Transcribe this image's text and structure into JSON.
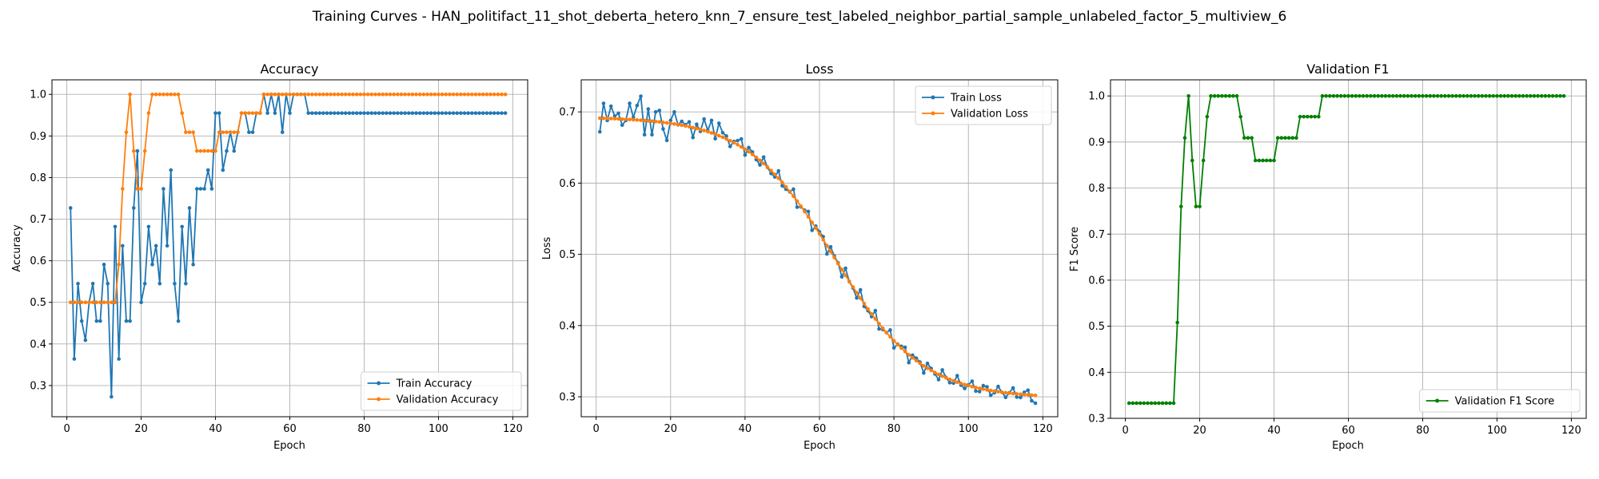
{
  "figure_title": "Training Curves - HAN_politifact_11_shot_deberta_hetero_knn_7_ensure_test_labeled_neighbor_partial_sample_unlabeled_factor_5_multiview_6",
  "colors": {
    "train": "#1f77b4",
    "validation": "#ff7f0e",
    "f1": "#008000",
    "grid": "#b0b0b0",
    "axis": "#000000"
  },
  "chart_data": [
    {
      "id": "accuracy",
      "type": "line",
      "title": "Accuracy",
      "xlabel": "Epoch",
      "ylabel": "Accuracy",
      "xlim": [
        -4,
        124
      ],
      "ylim": [
        0.225,
        1.035
      ],
      "xticks": [
        0,
        20,
        40,
        60,
        80,
        100,
        120
      ],
      "yticks": [
        0.3,
        0.4,
        0.5,
        0.6,
        0.7,
        0.8,
        0.9,
        1.0
      ],
      "ytick_labels": [
        "0.3",
        "0.4",
        "0.5",
        "0.6",
        "0.7",
        "0.8",
        "0.9",
        "1.0"
      ],
      "grid": true,
      "legend_position": "lower-right",
      "x_start": 1,
      "x_end": 118,
      "series": [
        {
          "name": "Train Accuracy",
          "color_key": "train",
          "values": [
            0.727,
            0.364,
            0.545,
            0.455,
            0.409,
            0.5,
            0.545,
            0.455,
            0.455,
            0.591,
            0.545,
            0.273,
            0.682,
            0.364,
            0.636,
            0.455,
            0.455,
            0.727,
            0.864,
            0.5,
            0.545,
            0.682,
            0.591,
            0.636,
            0.545,
            0.773,
            0.636,
            0.818,
            0.545,
            0.455,
            0.682,
            0.545,
            0.727,
            0.591,
            0.773,
            0.773,
            0.773,
            0.818,
            0.773,
            0.955,
            0.955,
            0.818,
            0.864,
            0.909,
            0.864,
            0.909,
            0.955,
            0.955,
            0.909,
            0.909,
            0.955,
            0.955,
            1.0,
            0.955,
            1.0,
            0.955,
            1.0,
            0.909,
            1.0,
            0.955,
            1.0,
            1.0,
            1.0,
            1.0,
            0.955
          ]
        },
        {
          "name": "Validation Accuracy",
          "color_key": "validation",
          "values": [
            0.5,
            0.5,
            0.5,
            0.5,
            0.5,
            0.5,
            0.5,
            0.5,
            0.5,
            0.5,
            0.5,
            0.5,
            0.5,
            0.591,
            0.773,
            0.909,
            1.0,
            0.864,
            0.773,
            0.773,
            0.864,
            0.955,
            1.0,
            1.0,
            1.0,
            1.0,
            1.0,
            1.0,
            1.0,
            1.0,
            0.955,
            0.909,
            0.909,
            0.909,
            0.864,
            0.864,
            0.864,
            0.864,
            0.864,
            0.864,
            0.909,
            0.909,
            0.909,
            0.909,
            0.909,
            0.909,
            0.955,
            0.955,
            0.955,
            0.955,
            0.955,
            0.955,
            1.0
          ],
          "fill_to_end": 1.0
        }
      ]
    },
    {
      "id": "loss",
      "type": "line",
      "title": "Loss",
      "xlabel": "Epoch",
      "ylabel": "Loss",
      "xlim": [
        -4,
        124
      ],
      "ylim": [
        0.272,
        0.745
      ],
      "xticks": [
        0,
        20,
        40,
        60,
        80,
        100,
        120
      ],
      "yticks": [
        0.3,
        0.4,
        0.5,
        0.6,
        0.7
      ],
      "ytick_labels": [
        "0.3",
        "0.4",
        "0.5",
        "0.6",
        "0.7"
      ],
      "grid": true,
      "legend_position": "upper-right",
      "x_start": 1,
      "x_end": 118,
      "series": [
        {
          "name": "Train Loss",
          "color_key": "train",
          "curve": {
            "start": 0.693,
            "end": 0.298,
            "k": 0.085,
            "x0": 64
          },
          "noise_amplitude": 0.012,
          "overrides": {
            "1": 0.672,
            "2": 0.712,
            "3": 0.688,
            "4": 0.708,
            "5": 0.694,
            "6": 0.698,
            "8": 0.688,
            "9": 0.712,
            "10": 0.692,
            "11": 0.709,
            "12": 0.722,
            "13": 0.668,
            "14": 0.704,
            "15": 0.668,
            "16": 0.7,
            "17": 0.702,
            "18": 0.676,
            "19": 0.66,
            "20": 0.688,
            "21": 0.7,
            "25": 0.686,
            "26": 0.664,
            "29": 0.69,
            "30": 0.674,
            "31": 0.688,
            "33": 0.684,
            "35": 0.666,
            "39": 0.662,
            "118": 0.291
          }
        },
        {
          "name": "Validation Loss",
          "color_key": "validation",
          "curve": {
            "start": 0.693,
            "end": 0.298,
            "k": 0.085,
            "x0": 64
          },
          "noise_amplitude": 0.0
        }
      ]
    },
    {
      "id": "validation-f1",
      "type": "line",
      "title": "Validation F1",
      "xlabel": "Epoch",
      "ylabel": "F1 Score",
      "xlim": [
        -4,
        124
      ],
      "ylim": [
        0.3,
        1.035
      ],
      "xticks": [
        0,
        20,
        40,
        60,
        80,
        100,
        120
      ],
      "yticks": [
        0.3,
        0.4,
        0.5,
        0.6,
        0.7,
        0.8,
        0.9,
        1.0
      ],
      "ytick_labels": [
        "0.3",
        "0.4",
        "0.5",
        "0.6",
        "0.7",
        "0.8",
        "0.9",
        "1.0"
      ],
      "grid": true,
      "legend_position": "lower-right",
      "x_start": 1,
      "x_end": 118,
      "series": [
        {
          "name": "Validation F1 Score",
          "color_key": "f1",
          "values": [
            0.333,
            0.333,
            0.333,
            0.333,
            0.333,
            0.333,
            0.333,
            0.333,
            0.333,
            0.333,
            0.333,
            0.333,
            0.333,
            0.508,
            0.76,
            0.909,
            1.0,
            0.86,
            0.76,
            0.76,
            0.86,
            0.955,
            1.0,
            1.0,
            1.0,
            1.0,
            1.0,
            1.0,
            1.0,
            1.0,
            0.955,
            0.909,
            0.909,
            0.909,
            0.86,
            0.86,
            0.86,
            0.86,
            0.86,
            0.86,
            0.909,
            0.909,
            0.909,
            0.909,
            0.909,
            0.909,
            0.955,
            0.955,
            0.955,
            0.955,
            0.955,
            0.955,
            1.0
          ],
          "fill_to_end": 1.0
        }
      ]
    }
  ]
}
